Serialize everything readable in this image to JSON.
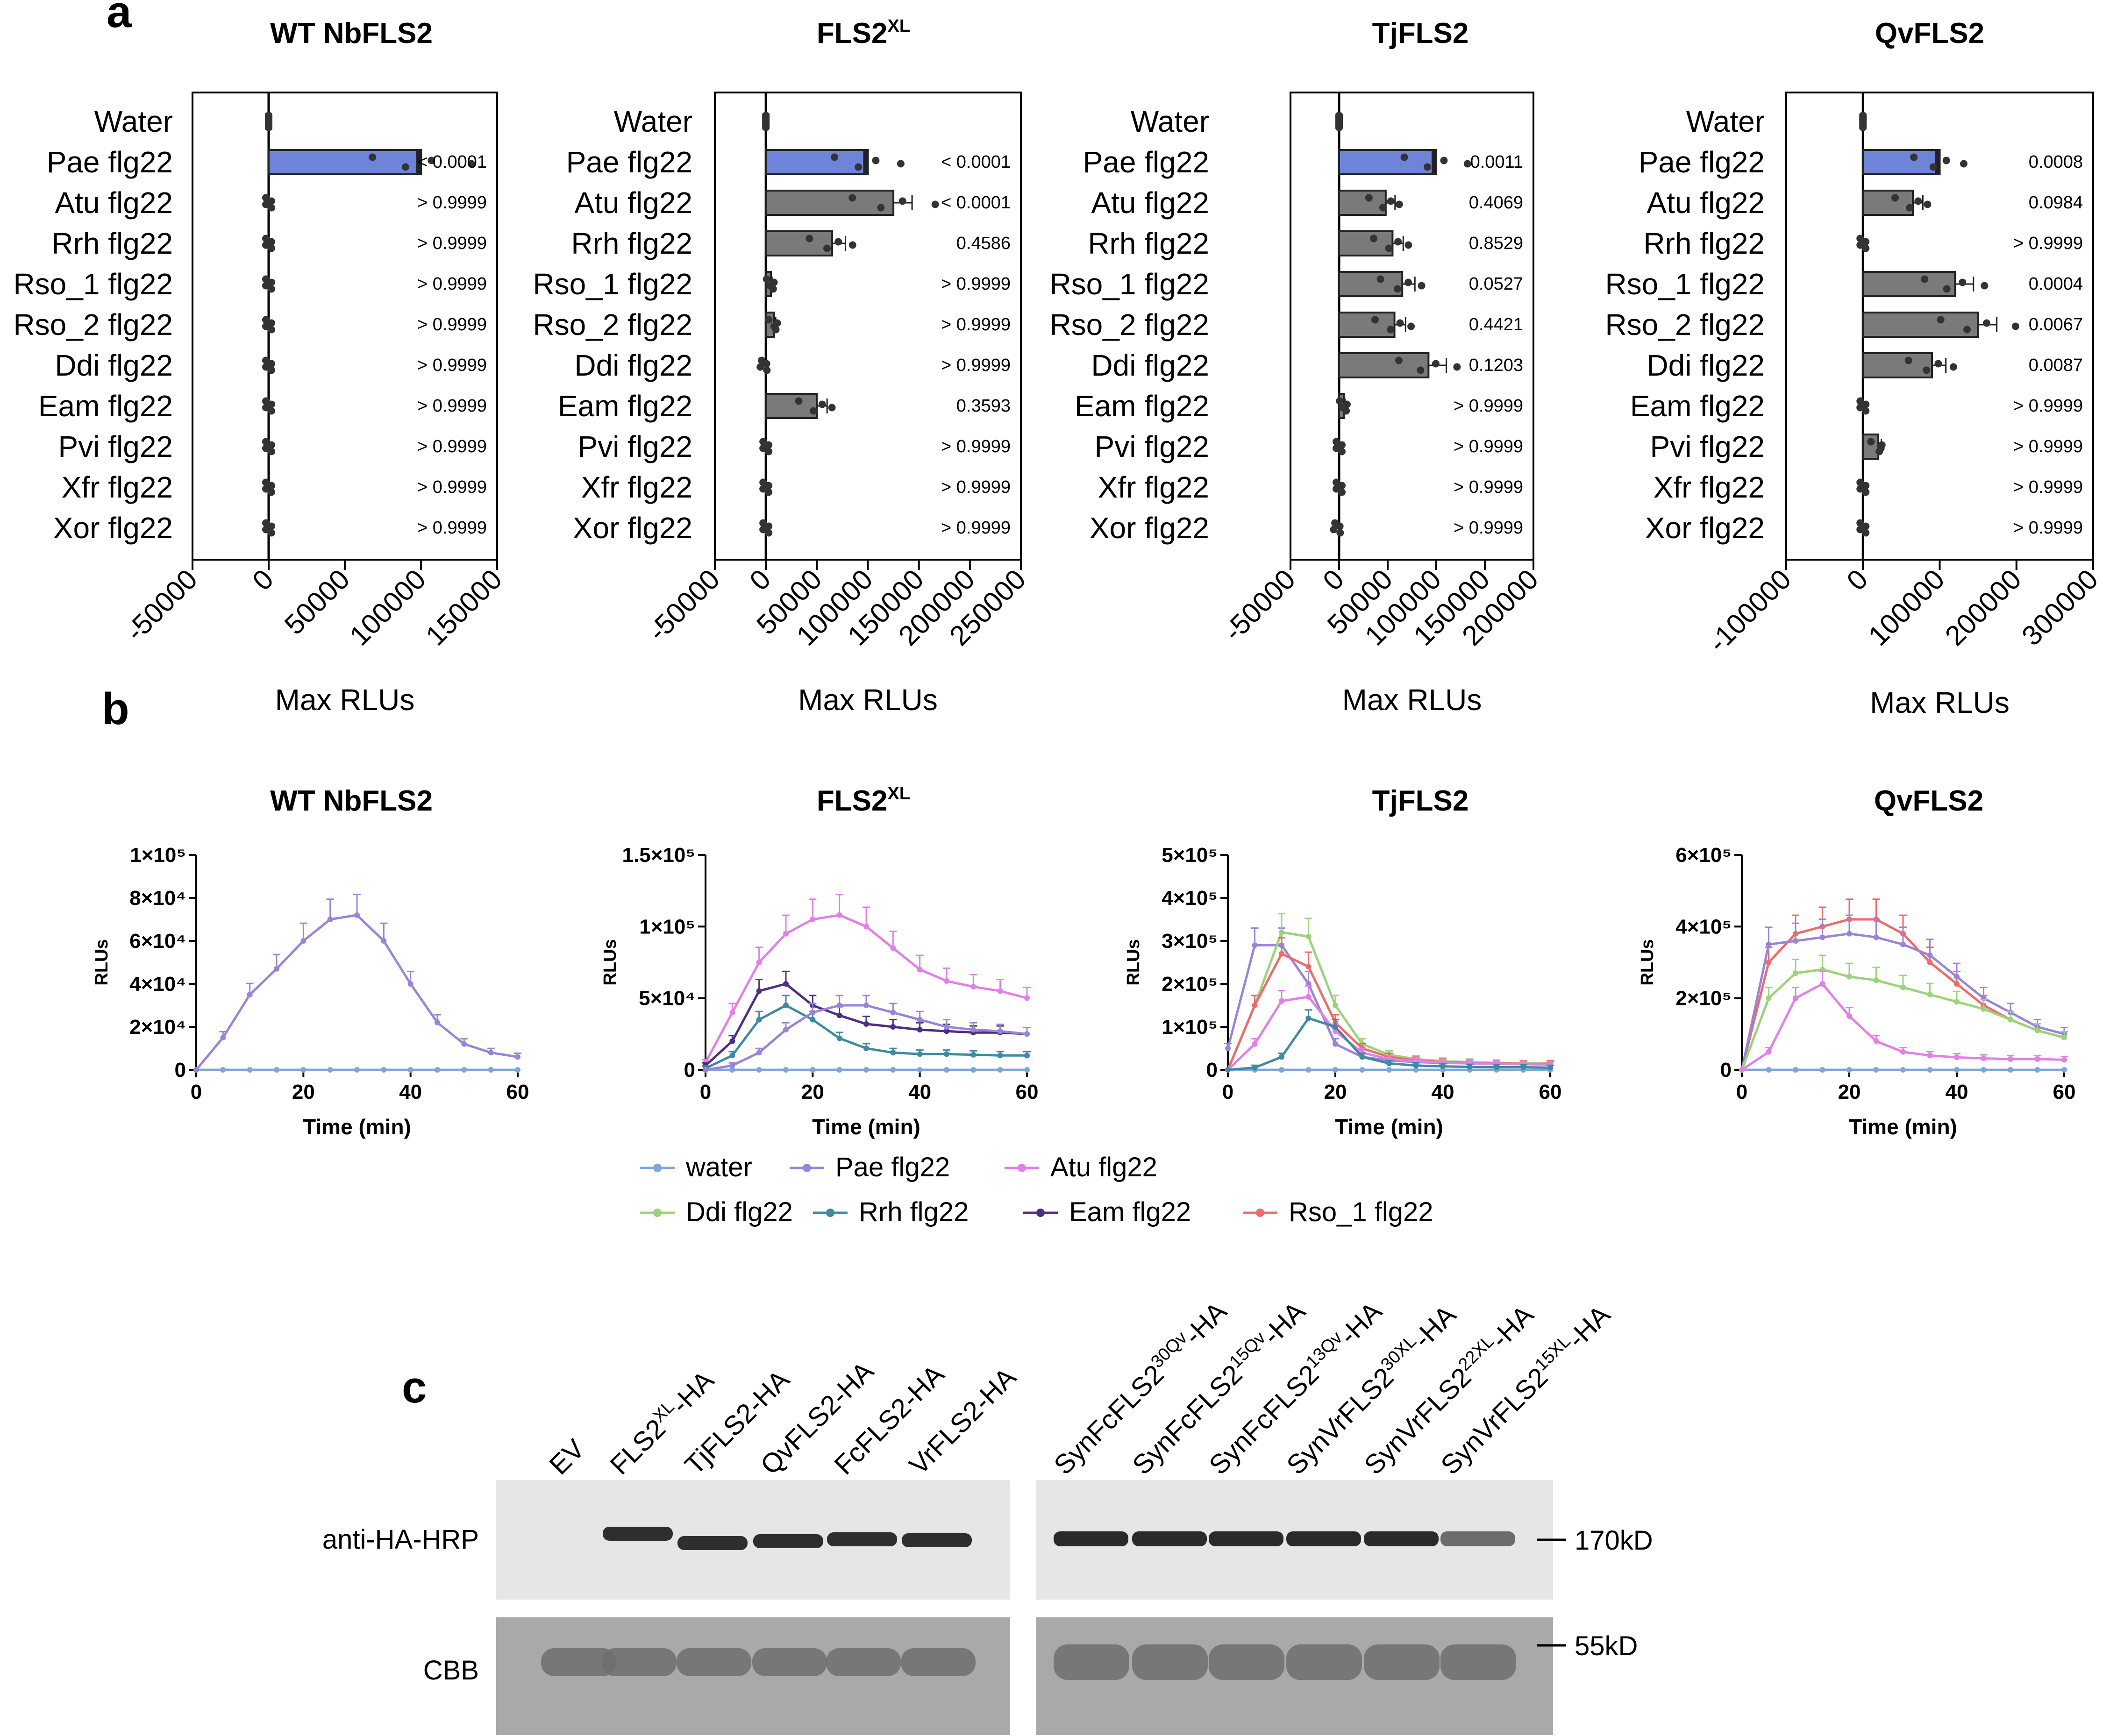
{
  "panel_labels": {
    "a": "a",
    "b": "b",
    "c": "c"
  },
  "colors": {
    "blue_bar": "#6d84d8",
    "grey_bar": "#7a7a7a",
    "water": "#7ea6d8",
    "pae": "#9a84d6",
    "atu": "#e080e8",
    "ddi": "#9ad47a",
    "rrh": "#3e8aa0",
    "eam": "#4b2f80",
    "rso1": "#ec6b6b"
  },
  "bar_axis_label": "Max RLUs",
  "chart_data": [
    {
      "type": "bar",
      "orientation": "horizontal",
      "title": "WT NbFLS2",
      "categories": [
        "Water",
        "Pae flg22",
        "Atu flg22",
        "Rrh flg22",
        "Rso_1 flg22",
        "Rso_2 flg22",
        "Ddi flg22",
        "Eam flg22",
        "Pvi flg22",
        "Xfr flg22",
        "Xor flg22"
      ],
      "values": [
        0,
        100000,
        0,
        0,
        0,
        0,
        0,
        0,
        0,
        0,
        0
      ],
      "p_values": [
        "",
        "< 0.0001",
        "> 0.9999",
        "> 0.9999",
        "> 0.9999",
        "> 0.9999",
        "> 0.9999",
        "> 0.9999",
        "> 0.9999",
        "> 0.9999",
        "> 0.9999"
      ],
      "xlim": [
        -50000,
        150000
      ],
      "xticks": [
        "-50000",
        "0",
        "50000",
        "100000",
        "150000"
      ],
      "xlabel": "Max RLUs"
    },
    {
      "type": "bar",
      "orientation": "horizontal",
      "title": "FLS2",
      "title_sup": "XL",
      "categories": [
        "Water",
        "Pae flg22",
        "Atu flg22",
        "Rrh flg22",
        "Rso_1 flg22",
        "Rso_2 flg22",
        "Ddi flg22",
        "Eam flg22",
        "Pvi flg22",
        "Xfr flg22",
        "Xor flg22"
      ],
      "values": [
        0,
        100000,
        125000,
        65000,
        5000,
        8000,
        -2000,
        50000,
        0,
        0,
        0
      ],
      "p_values": [
        "",
        "< 0.0001",
        "< 0.0001",
        "0.4586",
        "> 0.9999",
        "> 0.9999",
        "> 0.9999",
        "0.3593",
        "> 0.9999",
        "> 0.9999",
        "> 0.9999"
      ],
      "xlim": [
        -50000,
        250000
      ],
      "xticks": [
        "-50000",
        "0",
        "50000",
        "100000",
        "150000",
        "200000",
        "250000"
      ],
      "xlabel": "Max RLUs"
    },
    {
      "type": "bar",
      "orientation": "horizontal",
      "title": "TjFLS2",
      "categories": [
        "Water",
        "Pae flg22",
        "Atu flg22",
        "Rrh flg22",
        "Rso_1 flg22",
        "Rso_2 flg22",
        "Ddi flg22",
        "Eam flg22",
        "Pvi flg22",
        "Xfr flg22",
        "Xor flg22"
      ],
      "values": [
        0,
        100000,
        48000,
        55000,
        65000,
        57000,
        92000,
        5000,
        0,
        0,
        -2000
      ],
      "p_values": [
        "",
        "0.0011",
        "0.4069",
        "0.8529",
        "0.0527",
        "0.4421",
        "0.1203",
        "> 0.9999",
        "> 0.9999",
        "> 0.9999",
        "> 0.9999"
      ],
      "xlim": [
        -50000,
        200000
      ],
      "xticks": [
        "-50000",
        "0",
        "50000",
        "100000",
        "150000",
        "200000"
      ],
      "xlabel": "Max RLUs"
    },
    {
      "type": "bar",
      "orientation": "horizontal",
      "title": "QvFLS2",
      "categories": [
        "Water",
        "Pae flg22",
        "Atu flg22",
        "Rrh flg22",
        "Rso_1 flg22",
        "Rso_2 flg22",
        "Ddi flg22",
        "Eam flg22",
        "Pvi flg22",
        "Xfr flg22",
        "Xor flg22"
      ],
      "values": [
        0,
        100000,
        65000,
        0,
        120000,
        150000,
        90000,
        0,
        20000,
        0,
        0
      ],
      "p_values": [
        "",
        "0.0008",
        "0.0984",
        "> 0.9999",
        "0.0004",
        "0.0067",
        "0.0087",
        "> 0.9999",
        "> 0.9999",
        "> 0.9999",
        "> 0.9999"
      ],
      "xlim": [
        -100000,
        300000
      ],
      "xticks": [
        "-100000",
        "0",
        "100000",
        "200000",
        "300000"
      ],
      "xlabel": "Max RLUs"
    },
    {
      "type": "line",
      "title": "WT NbFLS2",
      "xlabel": "Time (min)",
      "ylabel": "RLUs",
      "xlim": [
        0,
        60
      ],
      "xticks": [
        "0",
        "20",
        "40",
        "60"
      ],
      "ylim": [
        0,
        100000
      ],
      "yticks": [
        "0",
        "2×10⁴",
        "4×10⁴",
        "6×10⁴",
        "8×10⁴",
        "1×10⁵"
      ],
      "x": [
        0,
        5,
        10,
        15,
        20,
        25,
        30,
        35,
        40,
        45,
        50,
        55,
        60
      ],
      "series": [
        {
          "name": "water",
          "color_key": "water",
          "values": [
            0,
            0,
            0,
            0,
            0,
            0,
            0,
            0,
            0,
            0,
            0,
            0,
            0
          ]
        },
        {
          "name": "Pae flg22",
          "color_key": "pae",
          "values": [
            0,
            15000,
            35000,
            47000,
            60000,
            70000,
            72000,
            60000,
            40000,
            22000,
            12000,
            8000,
            6000
          ]
        }
      ]
    },
    {
      "type": "line",
      "title": "FLS2",
      "title_sup": "XL",
      "xlabel": "Time (min)",
      "ylabel": "RLUs",
      "xlim": [
        0,
        60
      ],
      "xticks": [
        "0",
        "20",
        "40",
        "60"
      ],
      "ylim": [
        0,
        150000
      ],
      "yticks": [
        "0",
        "5×10⁴",
        "1×10⁵",
        "1.5×10⁵"
      ],
      "x": [
        0,
        5,
        10,
        15,
        20,
        25,
        30,
        35,
        40,
        45,
        50,
        55,
        60
      ],
      "series": [
        {
          "name": "water",
          "color_key": "water",
          "values": [
            0,
            0,
            0,
            0,
            0,
            0,
            0,
            0,
            0,
            0,
            0,
            0,
            0
          ]
        },
        {
          "name": "Atu flg22",
          "color_key": "atu",
          "values": [
            5000,
            40000,
            75000,
            95000,
            105000,
            108000,
            100000,
            85000,
            70000,
            62000,
            58000,
            55000,
            50000
          ]
        },
        {
          "name": "Eam flg22",
          "color_key": "eam",
          "values": [
            3000,
            20000,
            55000,
            60000,
            45000,
            38000,
            32000,
            30000,
            28000,
            27000,
            26000,
            26000,
            25000
          ]
        },
        {
          "name": "Rrh flg22",
          "color_key": "rrh",
          "values": [
            1000,
            10000,
            35000,
            45000,
            35000,
            22000,
            15000,
            12000,
            11000,
            11000,
            10500,
            10000,
            10000
          ]
        },
        {
          "name": "Pae flg22",
          "color_key": "pae",
          "values": [
            0,
            3000,
            12000,
            28000,
            40000,
            45000,
            45000,
            40000,
            35000,
            30000,
            28000,
            27000,
            25000
          ]
        }
      ]
    },
    {
      "type": "line",
      "title": "TjFLS2",
      "xlabel": "Time (min)",
      "ylabel": "RLUs",
      "xlim": [
        0,
        60
      ],
      "xticks": [
        "0",
        "20",
        "40",
        "60"
      ],
      "ylim": [
        0,
        500000
      ],
      "yticks": [
        "0",
        "1×10⁵",
        "2×10⁵",
        "3×10⁵",
        "4×10⁵",
        "5×10⁵"
      ],
      "x": [
        0,
        5,
        10,
        15,
        20,
        25,
        30,
        35,
        40,
        45,
        50,
        55,
        60
      ],
      "series": [
        {
          "name": "water",
          "color_key": "water",
          "values": [
            0,
            0,
            0,
            0,
            0,
            0,
            0,
            0,
            0,
            0,
            0,
            0,
            0
          ]
        },
        {
          "name": "Pae flg22",
          "color_key": "pae",
          "values": [
            50000,
            290000,
            290000,
            200000,
            60000,
            30000,
            22000,
            18000,
            16000,
            15000,
            14000,
            13000,
            13000
          ]
        },
        {
          "name": "Ddi flg22",
          "color_key": "ddi",
          "values": [
            0,
            150000,
            320000,
            310000,
            150000,
            60000,
            35000,
            25000,
            20000,
            18000,
            16000,
            15000,
            15000
          ]
        },
        {
          "name": "Rso_1 flg22",
          "color_key": "rso1",
          "values": [
            0,
            150000,
            270000,
            240000,
            110000,
            50000,
            30000,
            22000,
            18000,
            16000,
            15000,
            14000,
            14000
          ]
        },
        {
          "name": "Atu flg22",
          "color_key": "atu",
          "values": [
            0,
            60000,
            160000,
            170000,
            90000,
            40000,
            25000,
            20000,
            17000,
            15000,
            14000,
            13000,
            12000
          ]
        },
        {
          "name": "Rrh flg22",
          "color_key": "rrh",
          "values": [
            0,
            5000,
            30000,
            120000,
            100000,
            30000,
            15000,
            10000,
            8000,
            7000,
            6000,
            6000,
            5000
          ]
        }
      ]
    },
    {
      "type": "line",
      "title": "QvFLS2",
      "xlabel": "Time (min)",
      "ylabel": "RLUs",
      "xlim": [
        0,
        60
      ],
      "xticks": [
        "0",
        "20",
        "40",
        "60"
      ],
      "ylim": [
        0,
        600000
      ],
      "yticks": [
        "0",
        "2×10⁵",
        "4×10⁵",
        "6×10⁵"
      ],
      "x": [
        0,
        5,
        10,
        15,
        20,
        25,
        30,
        35,
        40,
        45,
        50,
        55,
        60
      ],
      "series": [
        {
          "name": "water",
          "color_key": "water",
          "values": [
            0,
            0,
            0,
            0,
            0,
            0,
            0,
            0,
            0,
            0,
            0,
            0,
            0
          ]
        },
        {
          "name": "Rso_1 flg22",
          "color_key": "rso1",
          "values": [
            0,
            300000,
            380000,
            400000,
            420000,
            420000,
            380000,
            300000,
            240000,
            180000,
            140000,
            110000,
            90000
          ]
        },
        {
          "name": "Pae flg22",
          "color_key": "pae",
          "values": [
            0,
            350000,
            360000,
            370000,
            380000,
            370000,
            350000,
            320000,
            260000,
            200000,
            160000,
            120000,
            100000
          ]
        },
        {
          "name": "Ddi flg22",
          "color_key": "ddi",
          "values": [
            0,
            200000,
            270000,
            280000,
            260000,
            250000,
            230000,
            210000,
            190000,
            170000,
            140000,
            110000,
            90000
          ]
        },
        {
          "name": "Atu flg22",
          "color_key": "atu",
          "values": [
            0,
            50000,
            200000,
            240000,
            150000,
            80000,
            50000,
            40000,
            35000,
            32000,
            30000,
            30000,
            28000
          ]
        }
      ]
    }
  ],
  "legend": [
    {
      "name": "water",
      "color_key": "water"
    },
    {
      "name": "Pae flg22",
      "color_key": "pae"
    },
    {
      "name": "Atu flg22",
      "color_key": "atu"
    },
    {
      "name": "Ddi flg22",
      "color_key": "ddi"
    },
    {
      "name": "Rrh flg22",
      "color_key": "rrh"
    },
    {
      "name": "Eam flg22",
      "color_key": "eam"
    },
    {
      "name": "Rso_1 flg22",
      "color_key": "rso1"
    }
  ],
  "blot": {
    "lanes_left": [
      {
        "base": "EV",
        "sup": "",
        "suffix": ""
      },
      {
        "base": "FLS2",
        "sup": "XL",
        "suffix": "-HA"
      },
      {
        "base": "TjFLS2-HA",
        "sup": "",
        "suffix": ""
      },
      {
        "base": "QvFLS2-HA",
        "sup": "",
        "suffix": ""
      },
      {
        "base": "FcFLS2-HA",
        "sup": "",
        "suffix": ""
      },
      {
        "base": "VrFLS2-HA",
        "sup": "",
        "suffix": ""
      }
    ],
    "lanes_right": [
      {
        "base": "SynFcFLS2",
        "sup": "30Qv",
        "suffix": "-HA"
      },
      {
        "base": "SynFcFLS2",
        "sup": "15Qv",
        "suffix": "-HA"
      },
      {
        "base": "SynFcFLS2",
        "sup": "13Qv",
        "suffix": "-HA"
      },
      {
        "base": "SynVrFLS2",
        "sup": "30XL",
        "suffix": "-HA"
      },
      {
        "base": "SynVrFLS2",
        "sup": "22XL",
        "suffix": "-HA"
      },
      {
        "base": "SynVrFLS2",
        "sup": "15XL",
        "suffix": "-HA"
      }
    ],
    "row_labels": [
      "anti-HA-HRP",
      "CBB"
    ],
    "markers": [
      "170kD",
      "55kD"
    ],
    "band_presence_left": [
      0,
      1,
      1,
      1,
      1,
      1
    ],
    "band_presence_right": [
      1,
      1,
      1,
      1,
      1,
      1
    ]
  }
}
